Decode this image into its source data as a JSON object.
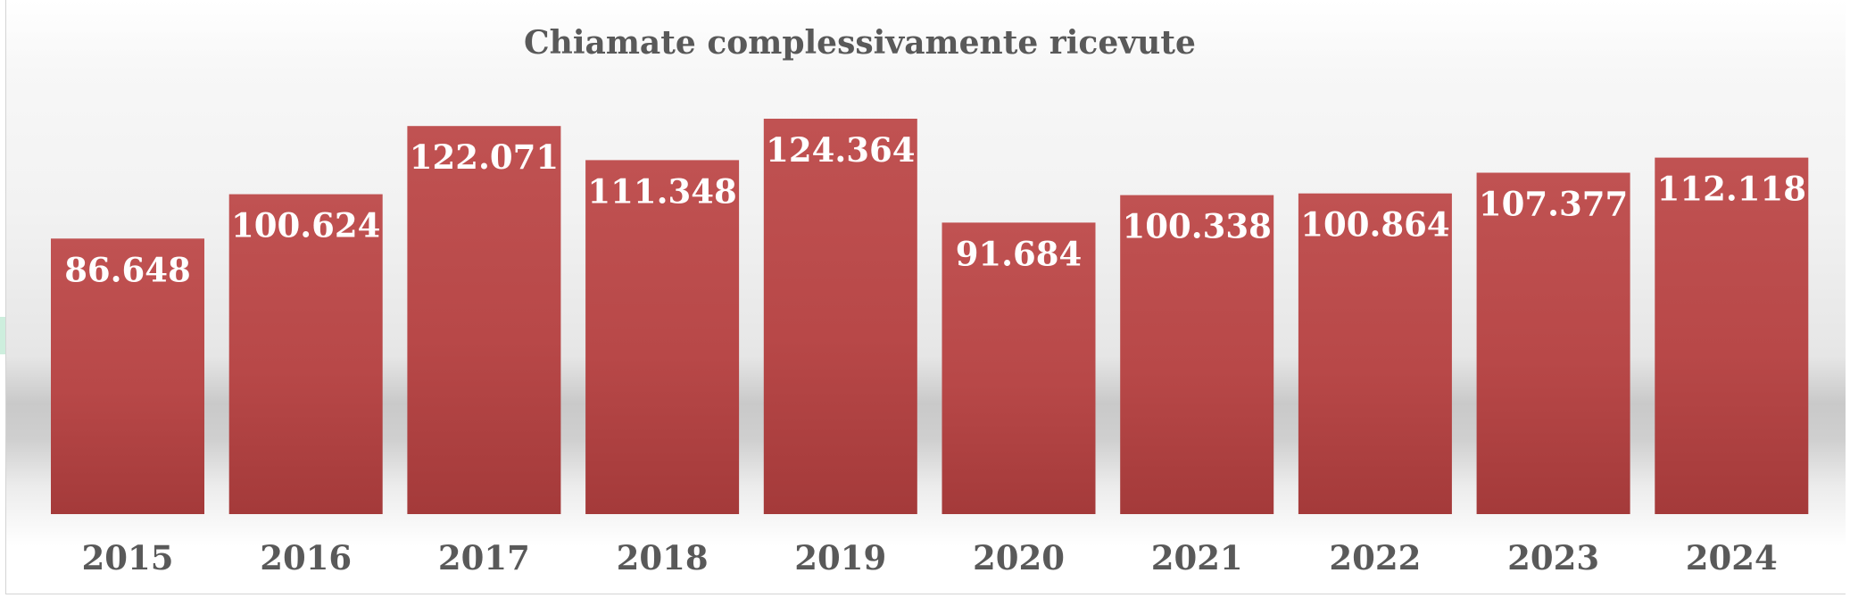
{
  "chart_data": {
    "type": "bar",
    "title": "Chiamate complessivamente ricevute",
    "categories": [
      "2015",
      "2016",
      "2017",
      "2018",
      "2019",
      "2020",
      "2021",
      "2022",
      "2023",
      "2024"
    ],
    "values": [
      86648,
      100624,
      122071,
      111348,
      124364,
      91684,
      100338,
      100864,
      107377,
      112118
    ],
    "value_labels": [
      "86.648",
      "100.624",
      "122.071",
      "111.348",
      "124.364",
      "91.684",
      "100.338",
      "100.864",
      "107.377",
      "112.118"
    ],
    "ylim": [
      0,
      124364
    ],
    "grid": false,
    "legend": "none",
    "bar_color": "#b94747"
  }
}
